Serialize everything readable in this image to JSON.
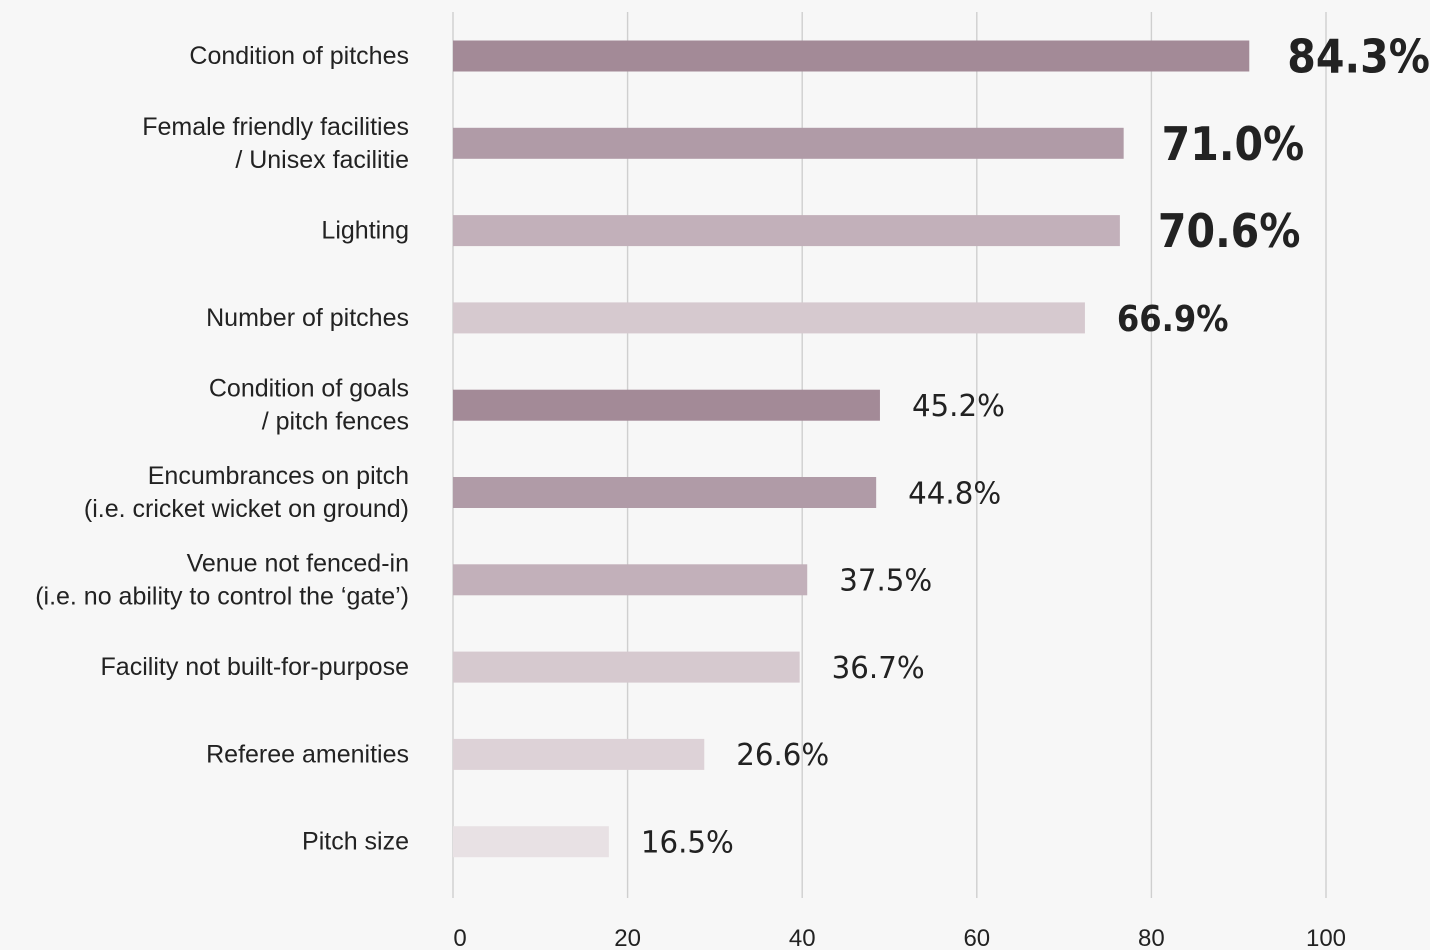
{
  "chart_data": {
    "type": "bar",
    "orientation": "horizontal",
    "categories": [
      [
        "Condition of pitches"
      ],
      [
        "Female friendly facilities",
        "/ Unisex facilitie"
      ],
      [
        "Lighting"
      ],
      [
        "Number of pitches"
      ],
      [
        "Condition of goals",
        "/ pitch fences"
      ],
      [
        "Encumbrances on pitch",
        "(i.e. cricket wicket on ground)"
      ],
      [
        "Venue not fenced-in",
        "(i.e. no ability to control the ‘gate’)"
      ],
      [
        "Facility not built-for-purpose"
      ],
      [
        "Referee amenities"
      ],
      [
        "Pitch size"
      ]
    ],
    "values": [
      84.3,
      71.0,
      70.6,
      66.9,
      45.2,
      44.8,
      37.5,
      36.7,
      26.6,
      16.5
    ],
    "value_labels": [
      "84.3%",
      "71.0%",
      "70.6%",
      "66.9%",
      "45.2%",
      "44.8%",
      "37.5%",
      "36.7%",
      "26.6%",
      "16.5%"
    ],
    "bar_colors": [
      "#a38a97",
      "#b09ba7",
      "#c2b0ba",
      "#d6c9cf",
      "#a38a97",
      "#b09ba7",
      "#c2b0ba",
      "#d6c9cf",
      "#ddd2d7",
      "#e8e1e4"
    ],
    "xlim": [
      0,
      100
    ],
    "xticks": [
      0,
      20,
      40,
      60,
      80,
      100
    ],
    "grid": true,
    "title": "",
    "xlabel": "",
    "ylabel": ""
  }
}
